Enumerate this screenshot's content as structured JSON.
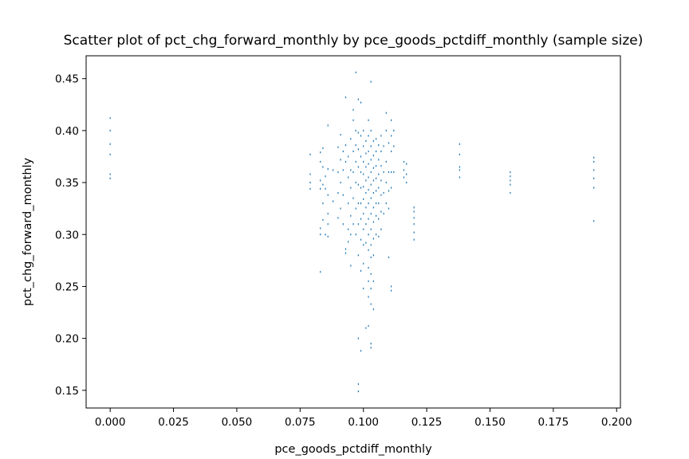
{
  "chart_data": {
    "type": "scatter",
    "title": "Scatter plot of pct_chg_forward_monthly by pce_goods_pctdiff_monthly (sample size)",
    "xlabel": "pce_goods_pctdiff_monthly",
    "ylabel": "pct_chg_forward_monthly",
    "xlim": [
      -0.0095,
      0.2015
    ],
    "ylim": [
      0.133,
      0.472
    ],
    "xticks": [
      0.0,
      0.025,
      0.05,
      0.075,
      0.1,
      0.125,
      0.15,
      0.175,
      0.2
    ],
    "xtick_labels": [
      "0.000",
      "0.025",
      "0.050",
      "0.075",
      "0.100",
      "0.125",
      "0.150",
      "0.175",
      "0.200"
    ],
    "yticks": [
      0.15,
      0.2,
      0.25,
      0.3,
      0.35,
      0.4,
      0.45
    ],
    "ytick_labels": [
      "0.15",
      "0.20",
      "0.25",
      "0.30",
      "0.35",
      "0.40",
      "0.45"
    ],
    "marker_color": "#1f77b4",
    "grid": false,
    "legend": "none",
    "points": [
      [
        0.0,
        0.412
      ],
      [
        0.0,
        0.4
      ],
      [
        0.0,
        0.387
      ],
      [
        0.0,
        0.377
      ],
      [
        0.0,
        0.358
      ],
      [
        0.0,
        0.354
      ],
      [
        0.079,
        0.377
      ],
      [
        0.079,
        0.358
      ],
      [
        0.079,
        0.35
      ],
      [
        0.079,
        0.344
      ],
      [
        0.083,
        0.379
      ],
      [
        0.083,
        0.37
      ],
      [
        0.083,
        0.352
      ],
      [
        0.083,
        0.344
      ],
      [
        0.083,
        0.306
      ],
      [
        0.083,
        0.3
      ],
      [
        0.083,
        0.264
      ],
      [
        0.084,
        0.383
      ],
      [
        0.084,
        0.365
      ],
      [
        0.084,
        0.348
      ],
      [
        0.084,
        0.33
      ],
      [
        0.084,
        0.314
      ],
      [
        0.085,
        0.356
      ],
      [
        0.085,
        0.344
      ],
      [
        0.085,
        0.3
      ],
      [
        0.086,
        0.405
      ],
      [
        0.086,
        0.363
      ],
      [
        0.086,
        0.338
      ],
      [
        0.086,
        0.32
      ],
      [
        0.086,
        0.31
      ],
      [
        0.086,
        0.298
      ],
      [
        0.088,
        0.362
      ],
      [
        0.088,
        0.332
      ],
      [
        0.09,
        0.384
      ],
      [
        0.09,
        0.36
      ],
      [
        0.09,
        0.34
      ],
      [
        0.09,
        0.316
      ],
      [
        0.091,
        0.396
      ],
      [
        0.091,
        0.372
      ],
      [
        0.091,
        0.35
      ],
      [
        0.091,
        0.325
      ],
      [
        0.092,
        0.38
      ],
      [
        0.092,
        0.362
      ],
      [
        0.092,
        0.338
      ],
      [
        0.092,
        0.31
      ],
      [
        0.093,
        0.432
      ],
      [
        0.093,
        0.386
      ],
      [
        0.093,
        0.37
      ],
      [
        0.093,
        0.286
      ],
      [
        0.093,
        0.282
      ],
      [
        0.094,
        0.375
      ],
      [
        0.094,
        0.355
      ],
      [
        0.094,
        0.33
      ],
      [
        0.094,
        0.305
      ],
      [
        0.094,
        0.293
      ],
      [
        0.095,
        0.392
      ],
      [
        0.095,
        0.362
      ],
      [
        0.095,
        0.345
      ],
      [
        0.095,
        0.318
      ],
      [
        0.095,
        0.3
      ],
      [
        0.095,
        0.27
      ],
      [
        0.096,
        0.42
      ],
      [
        0.096,
        0.41
      ],
      [
        0.096,
        0.38
      ],
      [
        0.096,
        0.36
      ],
      [
        0.096,
        0.335
      ],
      [
        0.096,
        0.31
      ],
      [
        0.097,
        0.456
      ],
      [
        0.097,
        0.4
      ],
      [
        0.097,
        0.386
      ],
      [
        0.097,
        0.37
      ],
      [
        0.097,
        0.35
      ],
      [
        0.097,
        0.325
      ],
      [
        0.097,
        0.3
      ],
      [
        0.098,
        0.43
      ],
      [
        0.098,
        0.398
      ],
      [
        0.098,
        0.382
      ],
      [
        0.098,
        0.365
      ],
      [
        0.098,
        0.348
      ],
      [
        0.098,
        0.33
      ],
      [
        0.098,
        0.31
      ],
      [
        0.098,
        0.28
      ],
      [
        0.098,
        0.2
      ],
      [
        0.098,
        0.156
      ],
      [
        0.098,
        0.149
      ],
      [
        0.099,
        0.427
      ],
      [
        0.099,
        0.395
      ],
      [
        0.099,
        0.375
      ],
      [
        0.099,
        0.36
      ],
      [
        0.099,
        0.345
      ],
      [
        0.099,
        0.33
      ],
      [
        0.099,
        0.315
      ],
      [
        0.099,
        0.295
      ],
      [
        0.099,
        0.265
      ],
      [
        0.099,
        0.188
      ],
      [
        0.1,
        0.4
      ],
      [
        0.1,
        0.385
      ],
      [
        0.1,
        0.37
      ],
      [
        0.1,
        0.358
      ],
      [
        0.1,
        0.346
      ],
      [
        0.1,
        0.334
      ],
      [
        0.1,
        0.32
      ],
      [
        0.1,
        0.305
      ],
      [
        0.1,
        0.29
      ],
      [
        0.1,
        0.272
      ],
      [
        0.1,
        0.248
      ],
      [
        0.101,
        0.39
      ],
      [
        0.101,
        0.378
      ],
      [
        0.101,
        0.365
      ],
      [
        0.101,
        0.352
      ],
      [
        0.101,
        0.34
      ],
      [
        0.101,
        0.326
      ],
      [
        0.101,
        0.31
      ],
      [
        0.101,
        0.292
      ],
      [
        0.101,
        0.21
      ],
      [
        0.102,
        0.41
      ],
      [
        0.102,
        0.395
      ],
      [
        0.102,
        0.38
      ],
      [
        0.102,
        0.368
      ],
      [
        0.102,
        0.355
      ],
      [
        0.102,
        0.343
      ],
      [
        0.102,
        0.33
      ],
      [
        0.102,
        0.315
      ],
      [
        0.102,
        0.3
      ],
      [
        0.102,
        0.285
      ],
      [
        0.102,
        0.268
      ],
      [
        0.102,
        0.255
      ],
      [
        0.102,
        0.24
      ],
      [
        0.102,
        0.212
      ],
      [
        0.103,
        0.447
      ],
      [
        0.103,
        0.4
      ],
      [
        0.103,
        0.385
      ],
      [
        0.103,
        0.372
      ],
      [
        0.103,
        0.36
      ],
      [
        0.103,
        0.348
      ],
      [
        0.103,
        0.335
      ],
      [
        0.103,
        0.32
      ],
      [
        0.103,
        0.305
      ],
      [
        0.103,
        0.29
      ],
      [
        0.103,
        0.278
      ],
      [
        0.103,
        0.262
      ],
      [
        0.103,
        0.248
      ],
      [
        0.103,
        0.233
      ],
      [
        0.103,
        0.195
      ],
      [
        0.103,
        0.191
      ],
      [
        0.104,
        0.39
      ],
      [
        0.104,
        0.376
      ],
      [
        0.104,
        0.364
      ],
      [
        0.104,
        0.352
      ],
      [
        0.104,
        0.34
      ],
      [
        0.104,
        0.326
      ],
      [
        0.104,
        0.312
      ],
      [
        0.104,
        0.296
      ],
      [
        0.104,
        0.28
      ],
      [
        0.104,
        0.255
      ],
      [
        0.104,
        0.228
      ],
      [
        0.105,
        0.392
      ],
      [
        0.105,
        0.38
      ],
      [
        0.105,
        0.366
      ],
      [
        0.105,
        0.354
      ],
      [
        0.105,
        0.342
      ],
      [
        0.105,
        0.33
      ],
      [
        0.105,
        0.318
      ],
      [
        0.105,
        0.3
      ],
      [
        0.106,
        0.386
      ],
      [
        0.106,
        0.372
      ],
      [
        0.106,
        0.358
      ],
      [
        0.106,
        0.345
      ],
      [
        0.106,
        0.33
      ],
      [
        0.106,
        0.315
      ],
      [
        0.106,
        0.298
      ],
      [
        0.107,
        0.395
      ],
      [
        0.107,
        0.38
      ],
      [
        0.107,
        0.366
      ],
      [
        0.107,
        0.352
      ],
      [
        0.107,
        0.338
      ],
      [
        0.107,
        0.322
      ],
      [
        0.107,
        0.305
      ],
      [
        0.108,
        0.385
      ],
      [
        0.108,
        0.36
      ],
      [
        0.108,
        0.34
      ],
      [
        0.108,
        0.32
      ],
      [
        0.109,
        0.417
      ],
      [
        0.109,
        0.4
      ],
      [
        0.109,
        0.37
      ],
      [
        0.109,
        0.35
      ],
      [
        0.109,
        0.33
      ],
      [
        0.11,
        0.388
      ],
      [
        0.11,
        0.36
      ],
      [
        0.11,
        0.342
      ],
      [
        0.11,
        0.325
      ],
      [
        0.11,
        0.278
      ],
      [
        0.111,
        0.41
      ],
      [
        0.111,
        0.395
      ],
      [
        0.111,
        0.38
      ],
      [
        0.111,
        0.36
      ],
      [
        0.111,
        0.345
      ],
      [
        0.111,
        0.25
      ],
      [
        0.111,
        0.246
      ],
      [
        0.112,
        0.4
      ],
      [
        0.112,
        0.385
      ],
      [
        0.112,
        0.36
      ],
      [
        0.116,
        0.37
      ],
      [
        0.116,
        0.362
      ],
      [
        0.116,
        0.355
      ],
      [
        0.117,
        0.368
      ],
      [
        0.117,
        0.358
      ],
      [
        0.117,
        0.35
      ],
      [
        0.12,
        0.326
      ],
      [
        0.12,
        0.322
      ],
      [
        0.12,
        0.316
      ],
      [
        0.12,
        0.31
      ],
      [
        0.12,
        0.302
      ],
      [
        0.12,
        0.295
      ],
      [
        0.138,
        0.387
      ],
      [
        0.138,
        0.377
      ],
      [
        0.138,
        0.365
      ],
      [
        0.138,
        0.362
      ],
      [
        0.138,
        0.355
      ],
      [
        0.158,
        0.36
      ],
      [
        0.158,
        0.356
      ],
      [
        0.158,
        0.352
      ],
      [
        0.158,
        0.348
      ],
      [
        0.158,
        0.34
      ],
      [
        0.191,
        0.374
      ],
      [
        0.191,
        0.37
      ],
      [
        0.191,
        0.362
      ],
      [
        0.191,
        0.354
      ],
      [
        0.191,
        0.345
      ],
      [
        0.191,
        0.313
      ]
    ]
  }
}
